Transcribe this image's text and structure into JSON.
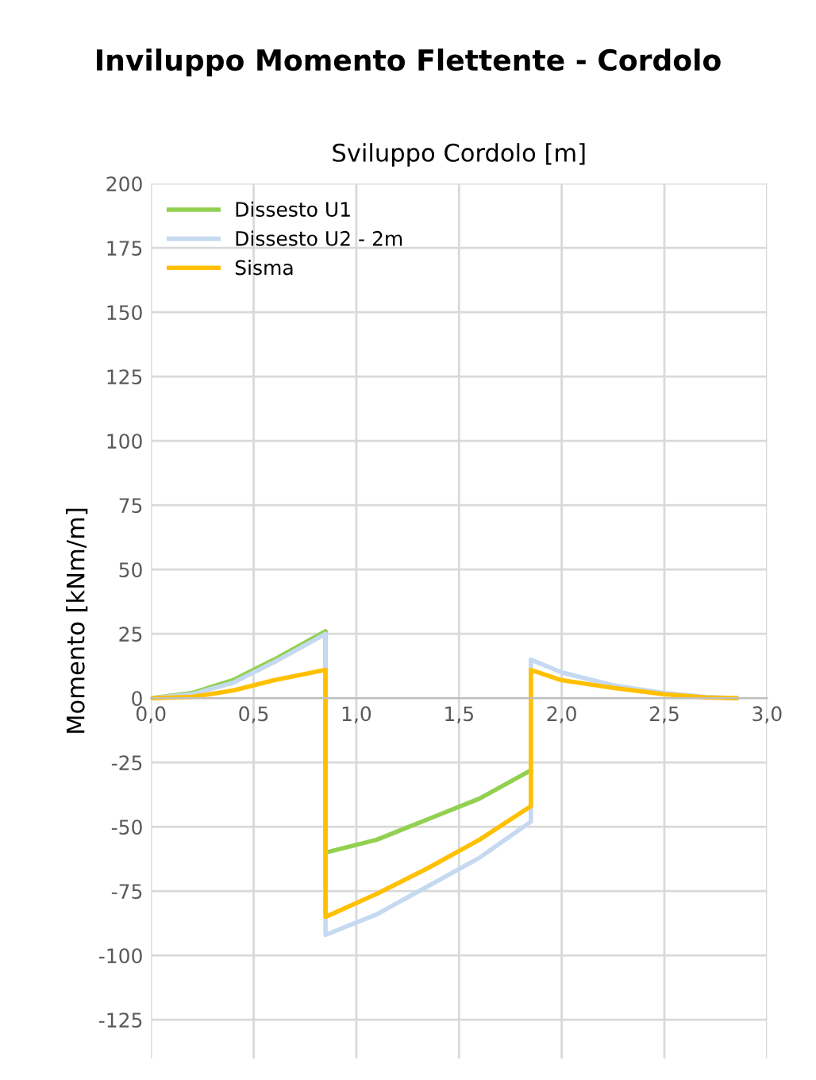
{
  "chart_data": {
    "type": "line",
    "title": "Inviluppo Momento Flettente - Cordolo",
    "xlabel": "Sviluppo Cordolo [m]",
    "ylabel": "Momento [kNm/m]",
    "xlim": [
      0,
      3
    ],
    "xticks": [
      {
        "value": 0,
        "label": "0,0"
      },
      {
        "value": 0.5,
        "label": "0,5"
      },
      {
        "value": 1,
        "label": "1,0"
      },
      {
        "value": 1.5,
        "label": "1,5"
      },
      {
        "value": 2,
        "label": "2,0"
      },
      {
        "value": 2.5,
        "label": "2,5"
      },
      {
        "value": 3,
        "label": "3,0"
      }
    ],
    "ylim": [
      -140,
      200
    ],
    "yticks": [
      -125,
      -100,
      -75,
      -50,
      -25,
      0,
      25,
      50,
      75,
      100,
      125,
      150,
      175,
      200
    ],
    "grid": true,
    "legend": "top left",
    "marker": "none",
    "line_style": "solid",
    "series": [
      {
        "name": "Dissesto U1",
        "color": "#92d050",
        "x": [
          0,
          0.2,
          0.4,
          0.6,
          0.85,
          0.85,
          1.1,
          1.35,
          1.6,
          1.85
        ],
        "values": [
          0,
          2,
          7,
          15,
          26,
          -60,
          -55,
          -47,
          -39,
          -28
        ]
      },
      {
        "name": "Dissesto U2 - 2m",
        "color": "#c5d9f1",
        "x": [
          0,
          0.2,
          0.4,
          0.6,
          0.85,
          0.85,
          1.1,
          1.35,
          1.6,
          1.85,
          1.85,
          2.0,
          2.25,
          2.5,
          2.7,
          2.85
        ],
        "values": [
          0,
          1.5,
          6,
          14,
          25,
          -92,
          -84,
          -73,
          -62,
          -48,
          15,
          10,
          5,
          2,
          0.5,
          0
        ]
      },
      {
        "name": "Sisma",
        "color": "#ffc000",
        "x": [
          0,
          0.2,
          0.4,
          0.6,
          0.85,
          0.85,
          1.1,
          1.35,
          1.6,
          1.85,
          1.85,
          2.0,
          2.25,
          2.5,
          2.7,
          2.85
        ],
        "values": [
          0,
          0.5,
          3,
          7,
          11,
          -85,
          -76,
          -66,
          -55,
          -42,
          11,
          7,
          4,
          1.5,
          0.3,
          0
        ]
      }
    ]
  }
}
